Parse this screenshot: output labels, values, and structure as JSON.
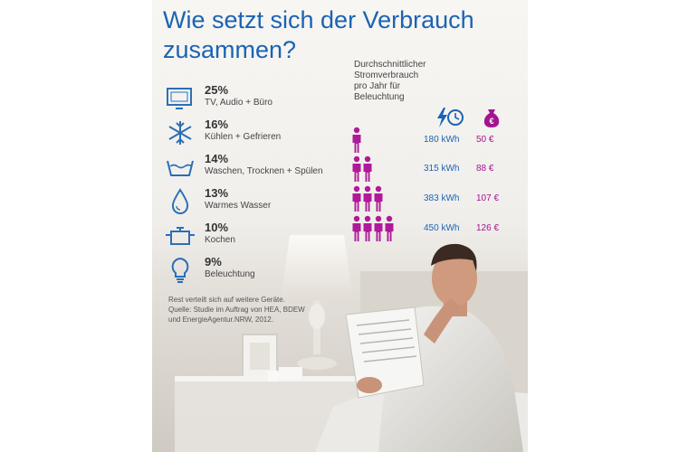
{
  "title": "Wie setzt sich der Verbrauch zusammen?",
  "colors": {
    "title_blue": "#1b63b4",
    "kwh_blue": "#1b63b4",
    "euro_magenta": "#a2158f",
    "person_magenta": "#b01a99"
  },
  "categories": [
    {
      "icon": "tv-icon",
      "percent": "25%",
      "label": "TV, Audio + Büro"
    },
    {
      "icon": "snowflake-icon",
      "percent": "16%",
      "label": "Kühlen + Gefrieren"
    },
    {
      "icon": "washing-basin-icon",
      "percent": "14%",
      "label": "Waschen, Trocknen + Spülen"
    },
    {
      "icon": "water-drop-icon",
      "percent": "13%",
      "label": "Warmes Wasser"
    },
    {
      "icon": "cooking-pot-icon",
      "percent": "10%",
      "label": "Kochen"
    },
    {
      "icon": "light-bulb-icon",
      "percent": "9%",
      "label": "Beleuchtung"
    }
  ],
  "footnote": {
    "line1": "Rest verteilt sich auf weitere Geräte.",
    "line2": "Quelle: Studie im Auftrag von HEA, BDEW",
    "line3": "und EnergieAgentur.NRW, 2012."
  },
  "lighting": {
    "heading": [
      "Durchschnittlicher",
      "Stromverbrauch",
      "pro Jahr für",
      "Beleuchtung"
    ],
    "columns": {
      "energy_icon": "lightning-clock-icon",
      "cost_icon": "euro-moneybag-icon"
    },
    "rows": [
      {
        "persons": 1,
        "kwh": "180 kWh",
        "euro": "50 €"
      },
      {
        "persons": 2,
        "kwh": "315 kWh",
        "euro": "88 €"
      },
      {
        "persons": 3,
        "kwh": "383 kWh",
        "euro": "107 €"
      },
      {
        "persons": 4,
        "kwh": "450 kWh",
        "euro": "126 €"
      }
    ]
  }
}
